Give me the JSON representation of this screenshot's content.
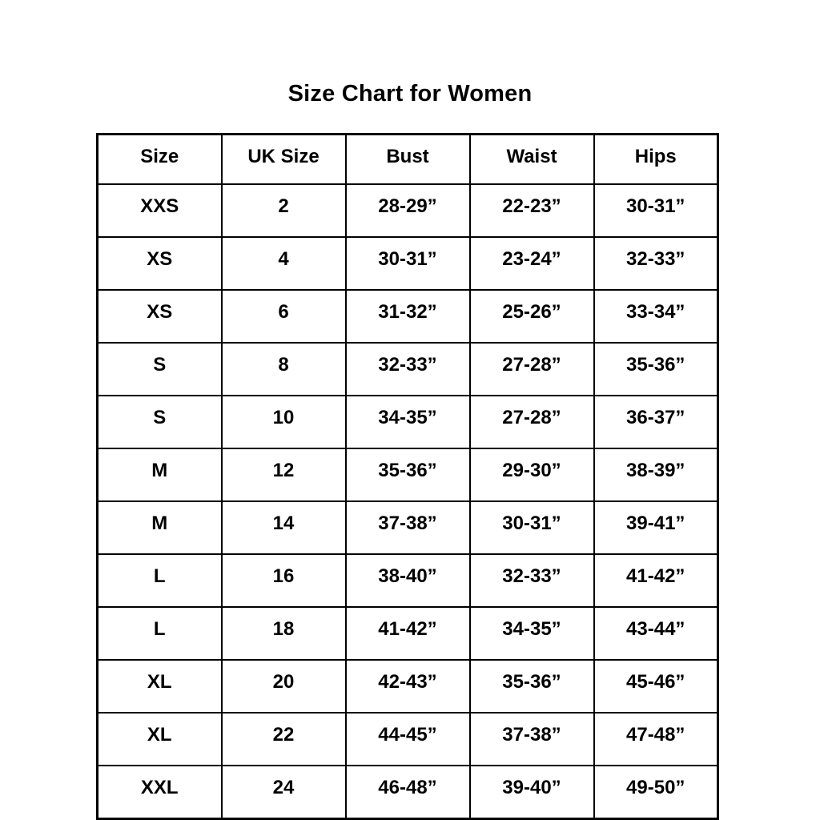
{
  "page": {
    "title": "Size Chart for Women"
  },
  "table": {
    "headers": [
      "Size",
      "UK Size",
      "Bust",
      "Waist",
      "Hips"
    ],
    "rows": [
      [
        "XXS",
        "2",
        "28-29”",
        "22-23”",
        "30-31”"
      ],
      [
        "XS",
        "4",
        "30-31”",
        "23-24”",
        "32-33”"
      ],
      [
        "XS",
        "6",
        "31-32”",
        "25-26”",
        "33-34”"
      ],
      [
        "S",
        "8",
        "32-33”",
        "27-28”",
        "35-36”"
      ],
      [
        "S",
        "10",
        "34-35”",
        "27-28”",
        "36-37”"
      ],
      [
        "M",
        "12",
        "35-36”",
        "29-30”",
        "38-39”"
      ],
      [
        "M",
        "14",
        "37-38”",
        "30-31”",
        "39-41”"
      ],
      [
        "L",
        "16",
        "38-40”",
        "32-33”",
        "41-42”"
      ],
      [
        "L",
        "18",
        "41-42”",
        "34-35”",
        "43-44”"
      ],
      [
        "XL",
        "20",
        "42-43”",
        "35-36”",
        "45-46”"
      ],
      [
        "XL",
        "22",
        "44-45”",
        "37-38”",
        "47-48”"
      ],
      [
        "XXL",
        "24",
        "46-48”",
        "39-40”",
        "49-50”"
      ]
    ]
  },
  "colors": {
    "background": "#ffffff",
    "border": "#000000",
    "text": "#000000"
  },
  "chart_data": {
    "type": "table",
    "title": "Size Chart for Women",
    "columns": [
      "Size",
      "UK Size",
      "Bust",
      "Waist",
      "Hips"
    ],
    "rows": [
      {
        "size": "XXS",
        "uk_size": 2,
        "bust": "28-29”",
        "waist": "22-23”",
        "hips": "30-31”"
      },
      {
        "size": "XS",
        "uk_size": 4,
        "bust": "30-31”",
        "waist": "23-24”",
        "hips": "32-33”"
      },
      {
        "size": "XS",
        "uk_size": 6,
        "bust": "31-32”",
        "waist": "25-26”",
        "hips": "33-34”"
      },
      {
        "size": "S",
        "uk_size": 8,
        "bust": "32-33”",
        "waist": "27-28”",
        "hips": "35-36”"
      },
      {
        "size": "S",
        "uk_size": 10,
        "bust": "34-35”",
        "waist": "27-28”",
        "hips": "36-37”"
      },
      {
        "size": "M",
        "uk_size": 12,
        "bust": "35-36”",
        "waist": "29-30”",
        "hips": "38-39”"
      },
      {
        "size": "M",
        "uk_size": 14,
        "bust": "37-38”",
        "waist": "30-31”",
        "hips": "39-41”"
      },
      {
        "size": "L",
        "uk_size": 16,
        "bust": "38-40”",
        "waist": "32-33”",
        "hips": "41-42”"
      },
      {
        "size": "L",
        "uk_size": 18,
        "bust": "41-42”",
        "waist": "34-35”",
        "hips": "43-44”"
      },
      {
        "size": "XL",
        "uk_size": 20,
        "bust": "42-43”",
        "waist": "35-36”",
        "hips": "45-46”"
      },
      {
        "size": "XL",
        "uk_size": 22,
        "bust": "44-45”",
        "waist": "37-38”",
        "hips": "47-48”"
      },
      {
        "size": "XXL",
        "uk_size": 24,
        "bust": "46-48”",
        "waist": "39-40”",
        "hips": "49-50”"
      }
    ],
    "layout": {
      "title_position": "top-center",
      "grid": true,
      "header_row": true
    }
  }
}
